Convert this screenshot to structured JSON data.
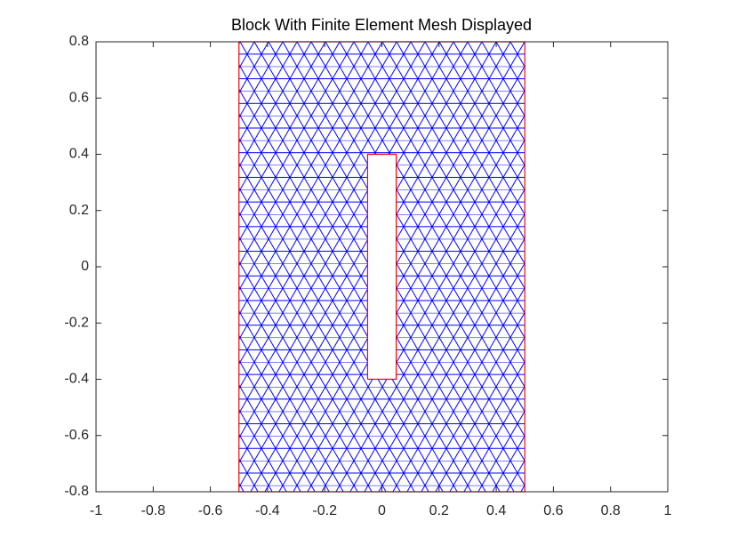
{
  "chart_data": {
    "type": "line",
    "title": "Block With Finite Element Mesh Displayed",
    "mesh_color": "#0000ff",
    "series": [
      {
        "color": "#ff0000",
        "x": [
          -0.5,
          0.5,
          0.5,
          -0.5,
          -0.5
        ],
        "values": [
          -0.8,
          -0.8,
          0.8,
          0.8,
          -0.8
        ]
      },
      {
        "color": "#ff0000",
        "x": [
          -0.05,
          0.05,
          0.05,
          -0.05,
          -0.05
        ],
        "values": [
          -0.4,
          -0.4,
          0.4,
          0.4,
          -0.4
        ]
      }
    ],
    "xlim": [
      -1,
      1
    ],
    "ylim": [
      -0.8,
      0.8
    ],
    "xticks": [
      -1,
      -0.8,
      -0.6,
      -0.4,
      -0.2,
      0,
      0.2,
      0.4,
      0.6,
      0.8,
      1
    ],
    "yticks": [
      -0.8,
      -0.6,
      -0.4,
      -0.2,
      0,
      0.2,
      0.4,
      0.6,
      0.8
    ]
  }
}
